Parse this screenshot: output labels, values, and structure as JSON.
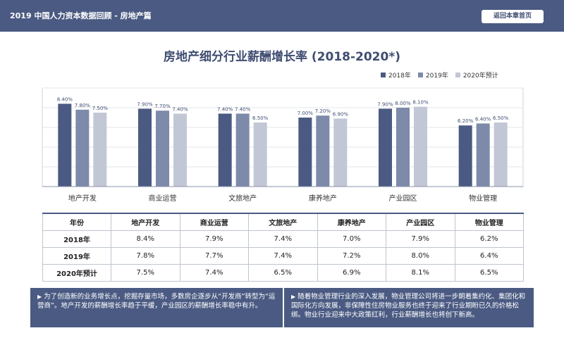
{
  "header": {
    "title": "2019 中国人力资本数据回顾 - 房地产篇",
    "back_button": "返回本章首页"
  },
  "chart_data": {
    "type": "bar",
    "title": "房地产细分行业薪酬增长率 (2018-2020*)",
    "categories": [
      "地产开发",
      "商业运营",
      "文旅地产",
      "康养地产",
      "产业园区",
      "物业管理"
    ],
    "series": [
      {
        "name": "2018年",
        "values": [
          8.4,
          7.9,
          7.4,
          7.0,
          7.9,
          6.2
        ],
        "labels": [
          "8.40%",
          "7.90%",
          "7.40%",
          "7.00%",
          "7.90%",
          "6.20%"
        ],
        "color": "#4a5a82"
      },
      {
        "name": "2019年",
        "values": [
          7.8,
          7.7,
          7.4,
          7.2,
          8.0,
          6.4
        ],
        "labels": [
          "7.80%",
          "7.70%",
          "7.40%",
          "7.20%",
          "8.00%",
          "6.40%"
        ],
        "color": "#7e8aaa"
      },
      {
        "name": "2020年预计",
        "values": [
          7.5,
          7.4,
          6.5,
          6.9,
          8.1,
          6.5
        ],
        "labels": [
          "7.50%",
          "7.40%",
          "6.50%",
          "6.90%",
          "8.10%",
          "6.50%"
        ],
        "color": "#c2c7d6"
      }
    ],
    "xlabel": "",
    "ylabel": "",
    "ylim": [
      0,
      10
    ],
    "grid": true,
    "legend": "top-right"
  },
  "table": {
    "header": [
      "年份",
      "地产开发",
      "商业运营",
      "文旅地产",
      "康养地产",
      "产业园区",
      "物业管理"
    ],
    "rows": [
      {
        "label": "2018年",
        "cells": [
          "8.4%",
          "7.9%",
          "7.4%",
          "7.0%",
          "7.9%",
          "6.2%"
        ]
      },
      {
        "label": "2019年",
        "cells": [
          "7.8%",
          "7.7%",
          "7.4%",
          "7.2%",
          "8.0%",
          "6.4%"
        ]
      },
      {
        "label": "2020年预计",
        "cells": [
          "7.5%",
          "7.4%",
          "6.5%",
          "6.9%",
          "8.1%",
          "6.5%"
        ]
      }
    ]
  },
  "notes": {
    "left": "为了创造新的业务增长点，挖掘存量市场，多数房企逐步从“开发商”转型为“运营商”。地产开发的薪酬增长率趋于平缓，产业园区的薪酬增长率稳中有升。",
    "right": "随着物业管理行业的深入发展，物业管理公司将进一步朝着集约化、集团化和国际化方向发展，非保障性住房物业服务也终于迎来了行业期盼已久的价格松绑。物业行业迎来中大政策红利，行业薪酬增长也将创下新高。"
  },
  "icons": {
    "note_arrow": "▶"
  }
}
